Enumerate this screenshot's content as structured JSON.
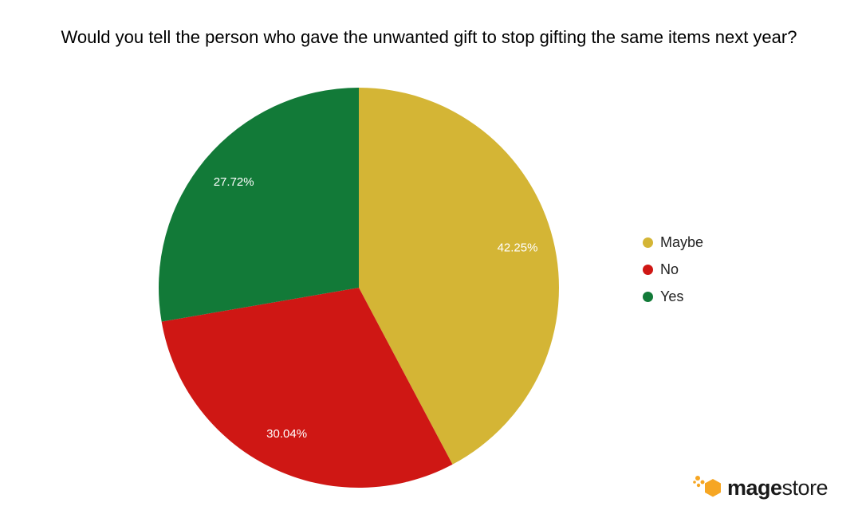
{
  "chart_data": {
    "type": "pie",
    "title": "Would you tell the person who gave the unwanted gift to stop gifting the same items next year?",
    "slices": [
      {
        "label": "Maybe",
        "value": 42.25,
        "display": "42.25%",
        "color": "#d4b535"
      },
      {
        "label": "No",
        "value": 30.04,
        "display": "30.04%",
        "color": "#cf1714"
      },
      {
        "label": "Yes",
        "value": 27.72,
        "display": "27.72%",
        "color": "#127a38"
      }
    ],
    "legend_position": "right",
    "label_color": "#ffffff"
  },
  "logo": {
    "part1": "mage",
    "part2": "store",
    "accent_color": "#f6a623"
  }
}
